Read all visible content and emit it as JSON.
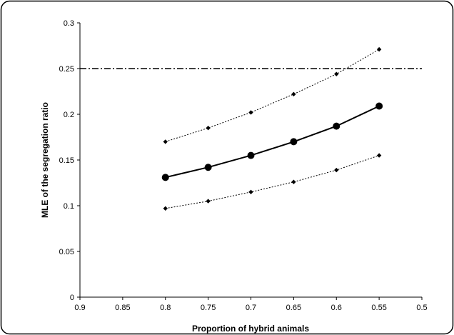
{
  "chart_data": {
    "type": "line",
    "title": "",
    "xlabel": "Proportion of hybrid animals",
    "ylabel": "MLE of the segregation ratio",
    "x_reversed": true,
    "xlim": [
      0.5,
      0.9
    ],
    "ylim": [
      0,
      0.3
    ],
    "x_ticks": [
      "0.9",
      "0.85",
      "0.8",
      "0.75",
      "0.7",
      "0.65",
      "0.6",
      "0.55",
      "0.5"
    ],
    "y_ticks": [
      "0",
      "0.05",
      "0.1",
      "0.15",
      "0.2",
      "0.25",
      "0.3"
    ],
    "grid": false,
    "legend": "none",
    "x": [
      0.8,
      0.75,
      0.7,
      0.65,
      0.6,
      0.55
    ],
    "series": [
      {
        "role": "upper-bound",
        "values": [
          0.17,
          0.185,
          0.202,
          0.222,
          0.244,
          0.271
        ],
        "line_style": "dotted",
        "marker": "diamond",
        "color": "#000000"
      },
      {
        "role": "estimate",
        "values": [
          0.131,
          0.142,
          0.155,
          0.17,
          0.187,
          0.209
        ],
        "line_style": "solid",
        "marker": "circle",
        "color": "#000000"
      },
      {
        "role": "lower-bound",
        "values": [
          0.097,
          0.105,
          0.115,
          0.126,
          0.139,
          0.155
        ],
        "line_style": "dotted",
        "marker": "diamond",
        "color": "#000000"
      }
    ],
    "reference_lines": [
      {
        "orientation": "horizontal",
        "y": 0.25,
        "line_style": "dash-dot",
        "color": "#000000"
      }
    ]
  }
}
